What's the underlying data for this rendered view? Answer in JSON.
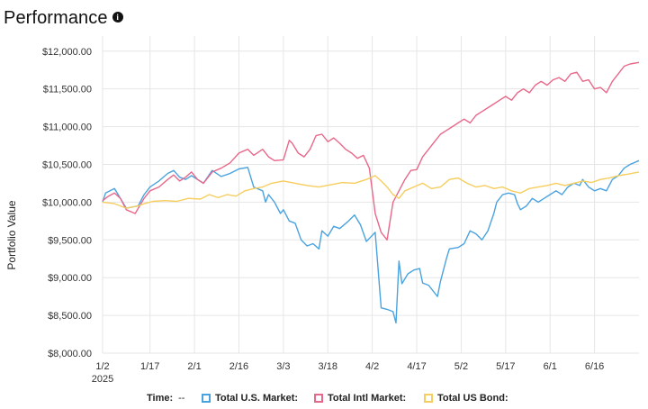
{
  "header": {
    "title": "Performance",
    "info_icon": "info-icon"
  },
  "legend": {
    "time_label": "Time:",
    "time_value": "--",
    "items": [
      {
        "label": "Total U.S. Market:",
        "color": "#4aa3df"
      },
      {
        "label": "Total Intl Market:",
        "color": "#e8688a"
      },
      {
        "label": "Total US Bond:",
        "color": "#f6cd5e"
      }
    ]
  },
  "chart_data": {
    "type": "line",
    "ylabel": "Portfolio Value",
    "xlabel": "",
    "ylim": [
      8000,
      12200
    ],
    "xlim_days": [
      1,
      182
    ],
    "y_ticks": [
      {
        "value": 8000,
        "label": "$8,000.00"
      },
      {
        "value": 8500,
        "label": "$8,500.00"
      },
      {
        "value": 9000,
        "label": "$9,000.00"
      },
      {
        "value": 9500,
        "label": "$9,500.00"
      },
      {
        "value": 10000,
        "label": "$10,000.00"
      },
      {
        "value": 10500,
        "label": "$10,500.00"
      },
      {
        "value": 11000,
        "label": "$11,000.00"
      },
      {
        "value": 11500,
        "label": "$11,500.00"
      },
      {
        "value": 12000,
        "label": "$12,000.00"
      }
    ],
    "x_ticks": [
      {
        "day": 1,
        "label": "1/2",
        "sublabel": "2025"
      },
      {
        "day": 17,
        "label": "1/17"
      },
      {
        "day": 32,
        "label": "2/1"
      },
      {
        "day": 47,
        "label": "2/16"
      },
      {
        "day": 62,
        "label": "3/3"
      },
      {
        "day": 77,
        "label": "3/18"
      },
      {
        "day": 92,
        "label": "4/2"
      },
      {
        "day": 107,
        "label": "4/17"
      },
      {
        "day": 122,
        "label": "5/2"
      },
      {
        "day": 137,
        "label": "5/17"
      },
      {
        "day": 152,
        "label": "6/1"
      },
      {
        "day": 167,
        "label": "6/16"
      }
    ],
    "grid": true,
    "series": [
      {
        "name": "Total U.S. Market",
        "color": "#4aa3df",
        "points": [
          [
            1,
            10000
          ],
          [
            2,
            10120
          ],
          [
            5,
            10180
          ],
          [
            7,
            10050
          ],
          [
            9,
            9920
          ],
          [
            13,
            9950
          ],
          [
            15,
            10100
          ],
          [
            17,
            10200
          ],
          [
            20,
            10280
          ],
          [
            23,
            10380
          ],
          [
            25,
            10420
          ],
          [
            27,
            10330
          ],
          [
            29,
            10300
          ],
          [
            31,
            10350
          ],
          [
            33,
            10300
          ],
          [
            35,
            10250
          ],
          [
            38,
            10420
          ],
          [
            41,
            10340
          ],
          [
            44,
            10380
          ],
          [
            47,
            10440
          ],
          [
            50,
            10460
          ],
          [
            52,
            10200
          ],
          [
            55,
            10150
          ],
          [
            56,
            10000
          ],
          [
            57,
            10100
          ],
          [
            59,
            10000
          ],
          [
            61,
            9850
          ],
          [
            62,
            9900
          ],
          [
            64,
            9750
          ],
          [
            66,
            9720
          ],
          [
            68,
            9500
          ],
          [
            70,
            9420
          ],
          [
            72,
            9450
          ],
          [
            74,
            9380
          ],
          [
            75,
            9620
          ],
          [
            77,
            9550
          ],
          [
            79,
            9680
          ],
          [
            81,
            9650
          ],
          [
            84,
            9750
          ],
          [
            86,
            9830
          ],
          [
            88,
            9700
          ],
          [
            90,
            9480
          ],
          [
            92,
            9560
          ],
          [
            93,
            9600
          ],
          [
            95,
            8600
          ],
          [
            97,
            8580
          ],
          [
            99,
            8550
          ],
          [
            100,
            8400
          ],
          [
            101,
            9220
          ],
          [
            102,
            8920
          ],
          [
            104,
            9050
          ],
          [
            106,
            9100
          ],
          [
            108,
            9120
          ],
          [
            109,
            8930
          ],
          [
            111,
            8900
          ],
          [
            113,
            8800
          ],
          [
            114,
            8750
          ],
          [
            115,
            8950
          ],
          [
            117,
            9250
          ],
          [
            118,
            9380
          ],
          [
            121,
            9400
          ],
          [
            123,
            9450
          ],
          [
            125,
            9620
          ],
          [
            127,
            9580
          ],
          [
            129,
            9500
          ],
          [
            131,
            9620
          ],
          [
            133,
            9850
          ],
          [
            134,
            10000
          ],
          [
            136,
            10100
          ],
          [
            138,
            10120
          ],
          [
            140,
            10100
          ],
          [
            141,
            9980
          ],
          [
            142,
            9900
          ],
          [
            144,
            9950
          ],
          [
            146,
            10050
          ],
          [
            148,
            10000
          ],
          [
            150,
            10050
          ],
          [
            152,
            10100
          ],
          [
            154,
            10150
          ],
          [
            156,
            10100
          ],
          [
            158,
            10200
          ],
          [
            160,
            10250
          ],
          [
            162,
            10220
          ],
          [
            163,
            10300
          ],
          [
            165,
            10200
          ],
          [
            167,
            10150
          ],
          [
            169,
            10180
          ],
          [
            171,
            10150
          ],
          [
            173,
            10300
          ],
          [
            175,
            10350
          ],
          [
            177,
            10450
          ],
          [
            179,
            10500
          ],
          [
            182,
            10550
          ]
        ]
      },
      {
        "name": "Total Intl Market",
        "color": "#e8688a",
        "points": [
          [
            1,
            10020
          ],
          [
            3,
            10080
          ],
          [
            5,
            10120
          ],
          [
            7,
            10050
          ],
          [
            9,
            9900
          ],
          [
            12,
            9850
          ],
          [
            15,
            10050
          ],
          [
            17,
            10150
          ],
          [
            20,
            10200
          ],
          [
            23,
            10300
          ],
          [
            25,
            10360
          ],
          [
            27,
            10280
          ],
          [
            29,
            10330
          ],
          [
            31,
            10400
          ],
          [
            33,
            10300
          ],
          [
            35,
            10250
          ],
          [
            38,
            10400
          ],
          [
            41,
            10450
          ],
          [
            44,
            10520
          ],
          [
            47,
            10650
          ],
          [
            50,
            10700
          ],
          [
            52,
            10620
          ],
          [
            55,
            10700
          ],
          [
            57,
            10600
          ],
          [
            59,
            10550
          ],
          [
            62,
            10560
          ],
          [
            64,
            10820
          ],
          [
            65,
            10780
          ],
          [
            67,
            10650
          ],
          [
            69,
            10600
          ],
          [
            71,
            10700
          ],
          [
            73,
            10880
          ],
          [
            75,
            10900
          ],
          [
            77,
            10800
          ],
          [
            79,
            10850
          ],
          [
            81,
            10780
          ],
          [
            83,
            10700
          ],
          [
            85,
            10650
          ],
          [
            87,
            10580
          ],
          [
            89,
            10620
          ],
          [
            91,
            10450
          ],
          [
            93,
            9850
          ],
          [
            95,
            9600
          ],
          [
            97,
            9500
          ],
          [
            99,
            10000
          ],
          [
            101,
            10150
          ],
          [
            103,
            10300
          ],
          [
            105,
            10420
          ],
          [
            107,
            10430
          ],
          [
            109,
            10600
          ],
          [
            111,
            10700
          ],
          [
            113,
            10800
          ],
          [
            115,
            10900
          ],
          [
            117,
            10950
          ],
          [
            119,
            11000
          ],
          [
            121,
            11050
          ],
          [
            123,
            11100
          ],
          [
            125,
            11050
          ],
          [
            127,
            11150
          ],
          [
            129,
            11200
          ],
          [
            131,
            11250
          ],
          [
            133,
            11300
          ],
          [
            135,
            11350
          ],
          [
            137,
            11400
          ],
          [
            139,
            11350
          ],
          [
            141,
            11450
          ],
          [
            143,
            11500
          ],
          [
            145,
            11450
          ],
          [
            147,
            11550
          ],
          [
            149,
            11600
          ],
          [
            151,
            11550
          ],
          [
            153,
            11620
          ],
          [
            155,
            11650
          ],
          [
            157,
            11600
          ],
          [
            159,
            11700
          ],
          [
            161,
            11720
          ],
          [
            163,
            11600
          ],
          [
            165,
            11620
          ],
          [
            167,
            11500
          ],
          [
            169,
            11520
          ],
          [
            171,
            11450
          ],
          [
            173,
            11600
          ],
          [
            175,
            11700
          ],
          [
            177,
            11800
          ],
          [
            179,
            11830
          ],
          [
            182,
            11850
          ]
        ]
      },
      {
        "name": "Total US Bond",
        "color": "#f6cd5e",
        "points": [
          [
            1,
            10000
          ],
          [
            5,
            9980
          ],
          [
            9,
            9920
          ],
          [
            13,
            9950
          ],
          [
            15,
            9980
          ],
          [
            18,
            10010
          ],
          [
            22,
            10020
          ],
          [
            26,
            10010
          ],
          [
            30,
            10050
          ],
          [
            34,
            10040
          ],
          [
            37,
            10100
          ],
          [
            40,
            10060
          ],
          [
            43,
            10100
          ],
          [
            46,
            10080
          ],
          [
            49,
            10150
          ],
          [
            52,
            10180
          ],
          [
            55,
            10200
          ],
          [
            58,
            10250
          ],
          [
            62,
            10280
          ],
          [
            66,
            10250
          ],
          [
            70,
            10220
          ],
          [
            74,
            10200
          ],
          [
            78,
            10230
          ],
          [
            82,
            10260
          ],
          [
            86,
            10250
          ],
          [
            90,
            10300
          ],
          [
            93,
            10350
          ],
          [
            95,
            10280
          ],
          [
            97,
            10200
          ],
          [
            99,
            10100
          ],
          [
            101,
            10050
          ],
          [
            103,
            10150
          ],
          [
            106,
            10200
          ],
          [
            109,
            10250
          ],
          [
            112,
            10180
          ],
          [
            115,
            10200
          ],
          [
            118,
            10300
          ],
          [
            121,
            10320
          ],
          [
            124,
            10250
          ],
          [
            127,
            10200
          ],
          [
            130,
            10220
          ],
          [
            133,
            10180
          ],
          [
            136,
            10200
          ],
          [
            139,
            10150
          ],
          [
            142,
            10120
          ],
          [
            145,
            10180
          ],
          [
            148,
            10200
          ],
          [
            151,
            10220
          ],
          [
            154,
            10250
          ],
          [
            157,
            10220
          ],
          [
            160,
            10250
          ],
          [
            163,
            10280
          ],
          [
            166,
            10260
          ],
          [
            169,
            10300
          ],
          [
            172,
            10320
          ],
          [
            175,
            10350
          ],
          [
            178,
            10370
          ],
          [
            182,
            10400
          ]
        ]
      }
    ]
  }
}
